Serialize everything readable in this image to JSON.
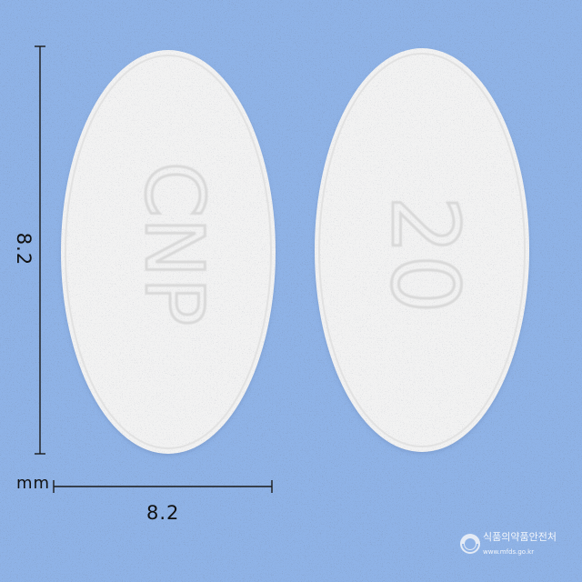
{
  "scene": {
    "background_color": "#8fb3e7",
    "tablet_color": "#f2f2f2"
  },
  "dimensions": {
    "height_value": "8.2",
    "width_value": "8.2",
    "unit": "mm"
  },
  "tablets": {
    "left_imprint": "CNP",
    "right_imprint": "20"
  },
  "watermark": {
    "text": "식품의약품안전처",
    "url": "www.mfds.go.kr"
  }
}
